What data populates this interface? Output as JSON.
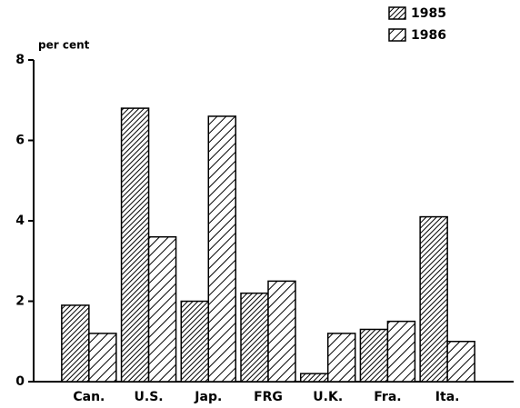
{
  "chart_data": {
    "type": "bar",
    "y_label": "per cent",
    "categories": [
      "Can.",
      "U.S.",
      "Jap.",
      "FRG",
      "U.K.",
      "Fra.",
      "Ita."
    ],
    "series": [
      {
        "name": "1985",
        "color": "#000000",
        "values": [
          1.9,
          6.8,
          2.0,
          2.2,
          0.2,
          1.3,
          4.1
        ]
      },
      {
        "name": "1986",
        "color": "#000000",
        "values": [
          1.2,
          3.6,
          6.6,
          2.5,
          1.2,
          1.5,
          1.0
        ]
      }
    ],
    "ylim": [
      0,
      8
    ],
    "yticks": [
      0,
      2,
      4,
      6,
      8
    ],
    "legend": "upper right"
  }
}
